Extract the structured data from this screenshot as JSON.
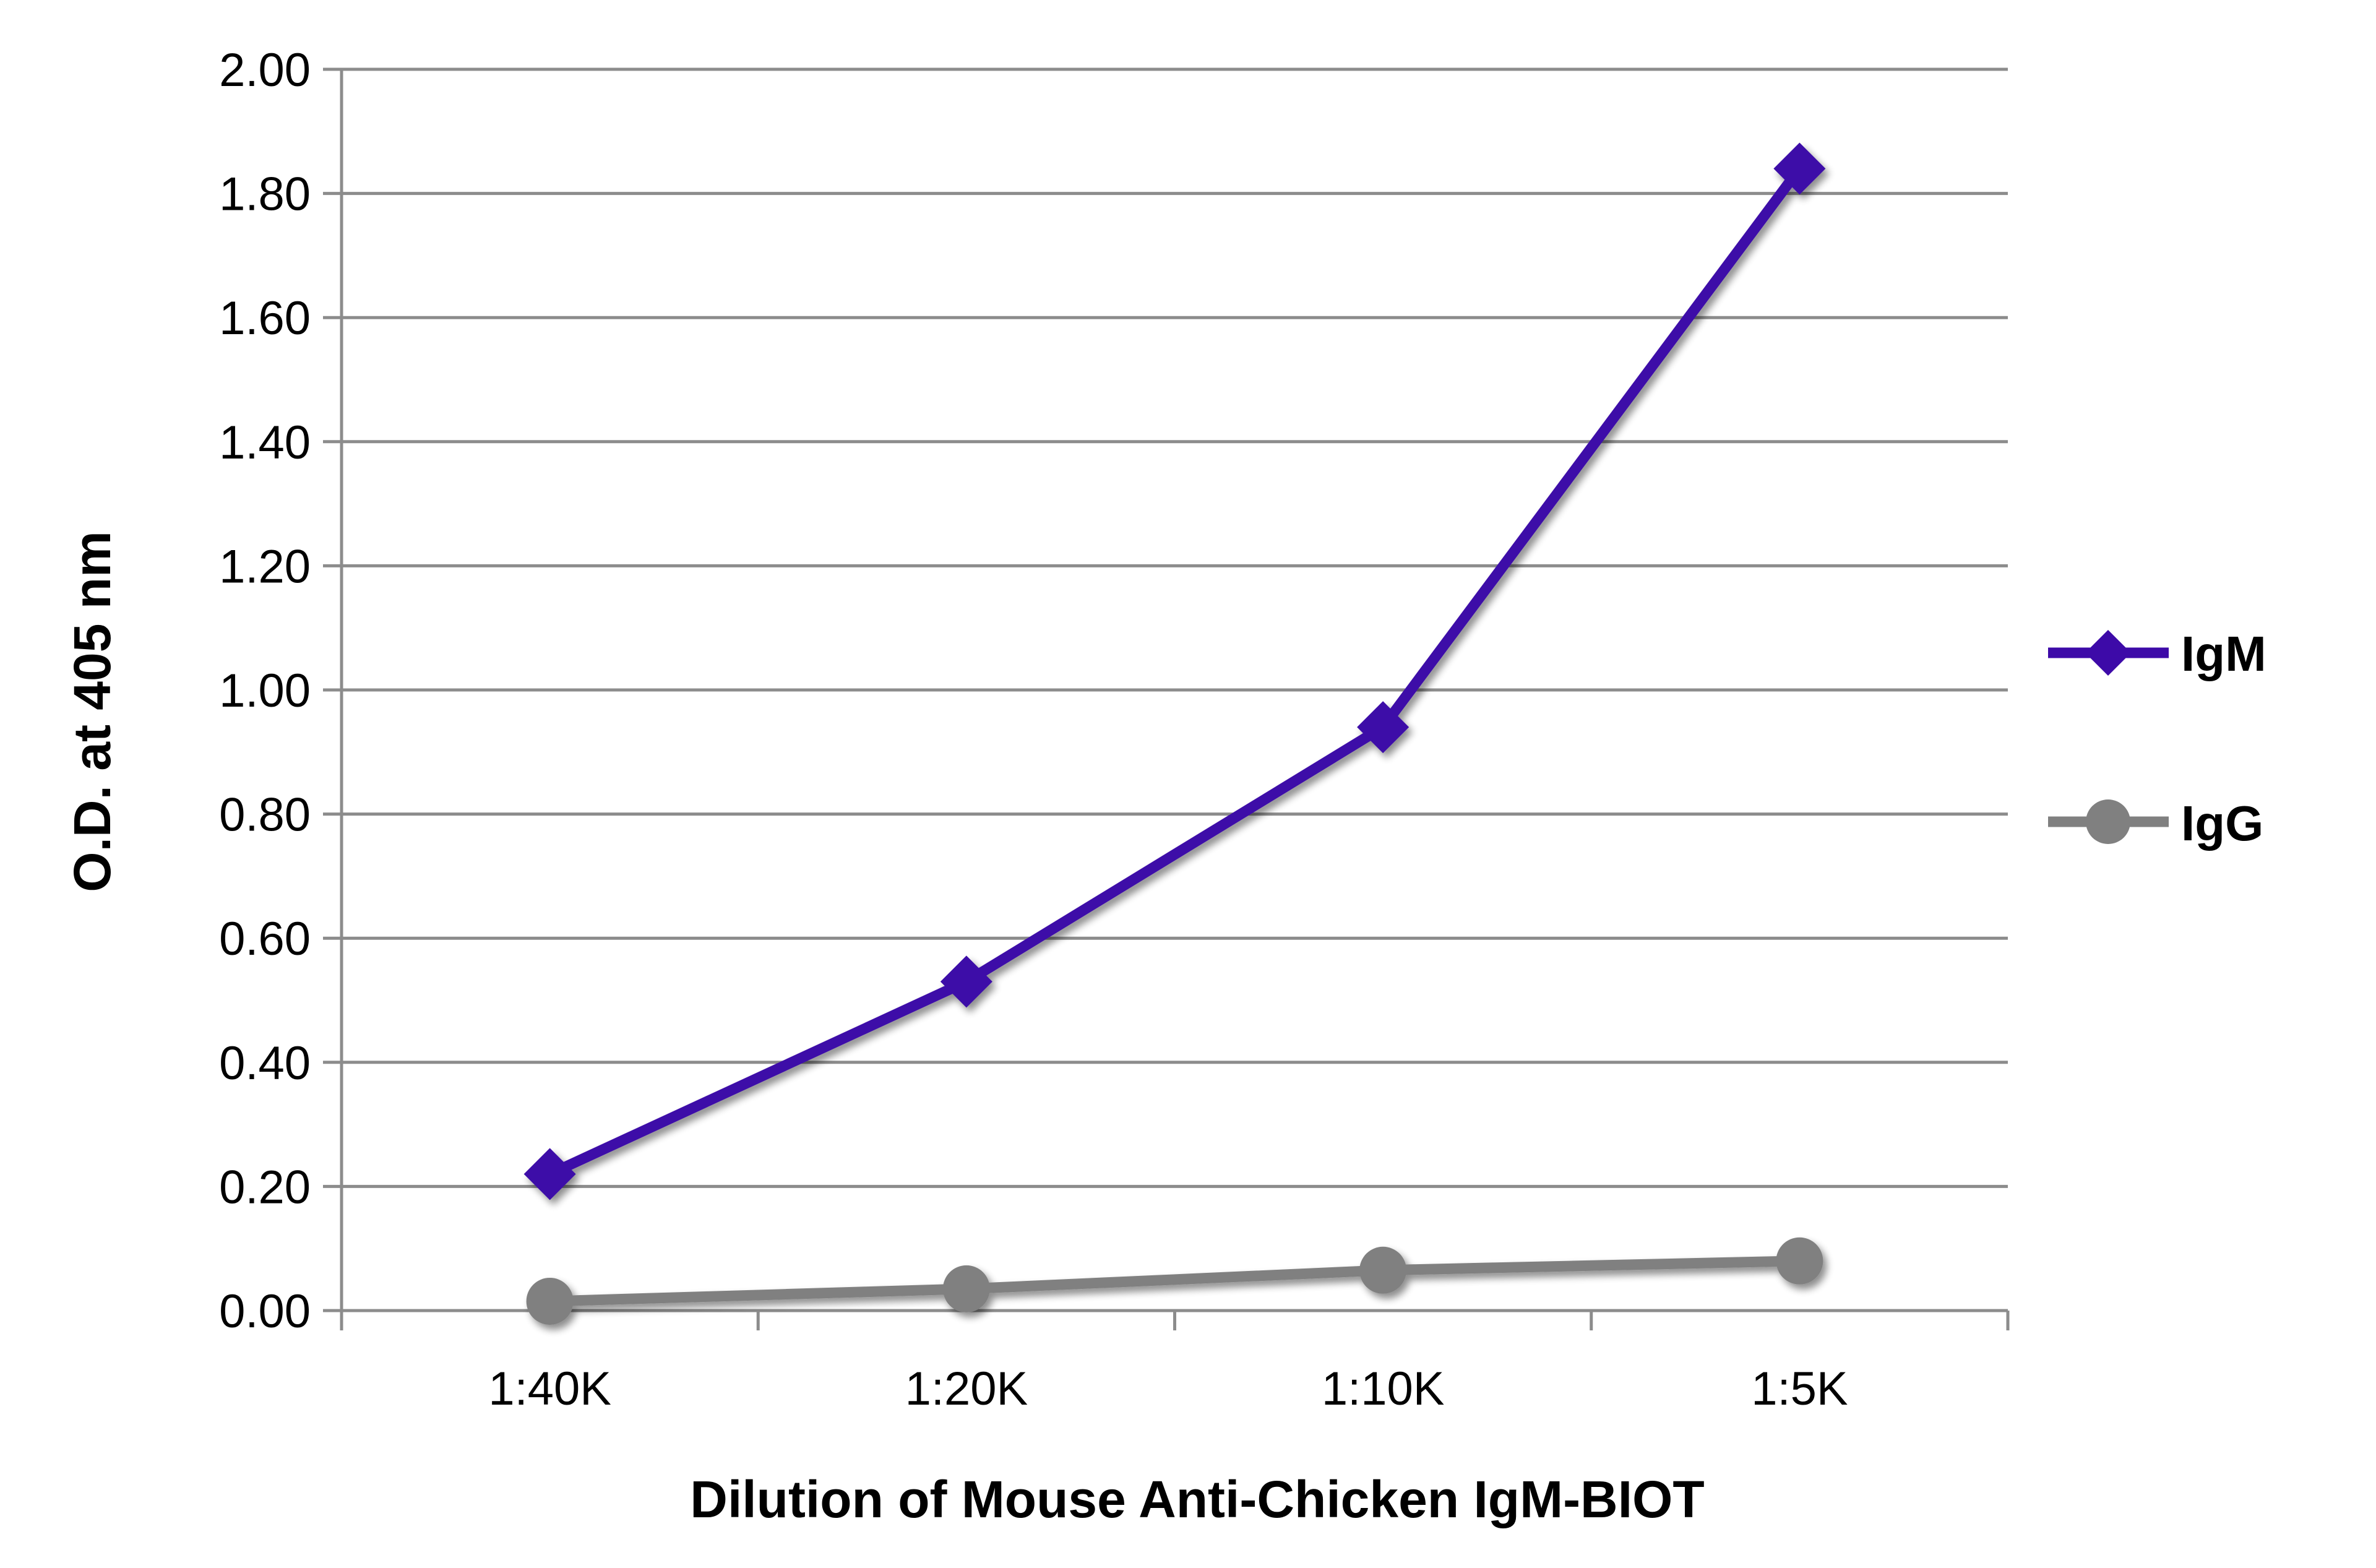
{
  "chart_data": {
    "type": "line",
    "title": "",
    "xlabel": "Dilution of Mouse Anti-Chicken IgM-BIOT",
    "ylabel": "O.D. at 405 nm",
    "categories": [
      "1:40K",
      "1:20K",
      "1:10K",
      "1:5K"
    ],
    "ylim": [
      0,
      2
    ],
    "y_ticks": [
      "0.00",
      "0.20",
      "0.40",
      "0.60",
      "0.80",
      "1.00",
      "1.20",
      "1.40",
      "1.60",
      "1.80",
      "2.00"
    ],
    "grid": true,
    "legend_position": "right",
    "series": [
      {
        "name": "IgM",
        "values": [
          0.22,
          0.53,
          0.94,
          1.84
        ],
        "color": "#3d0aa8",
        "marker": "diamond"
      },
      {
        "name": "IgG",
        "values": [
          0.015,
          0.035,
          0.065,
          0.08
        ],
        "color": "#808080",
        "marker": "circle"
      }
    ]
  }
}
